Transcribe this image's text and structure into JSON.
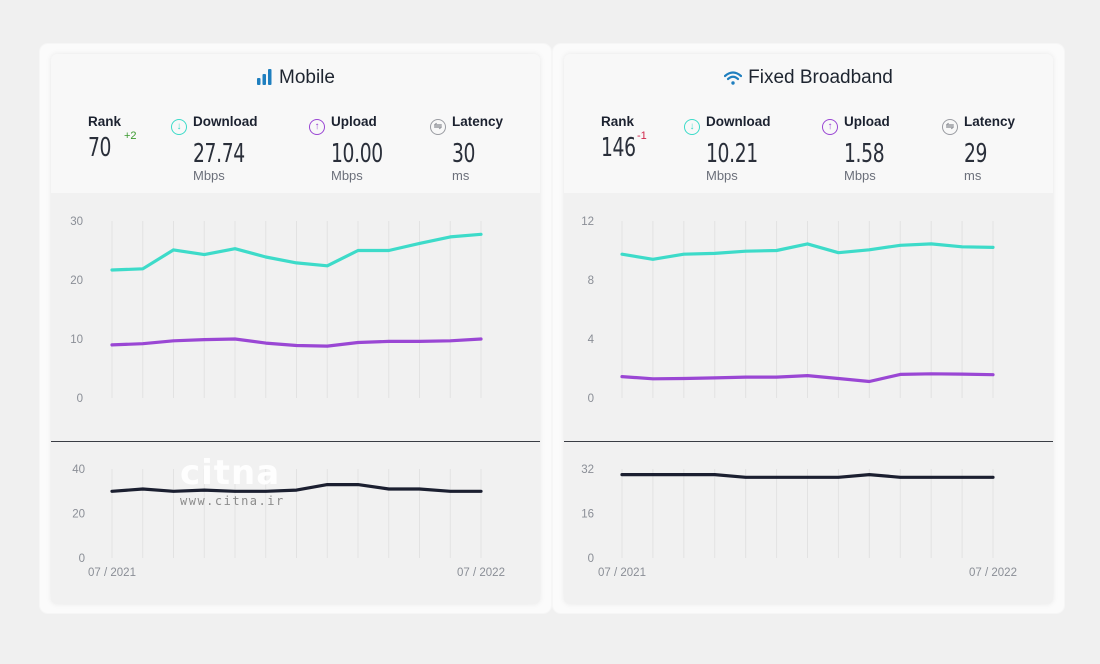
{
  "panels": [
    {
      "id": "mobile",
      "title": "Mobile",
      "icon": "signal-bars-icon",
      "rank": {
        "label": "Rank",
        "value": "70",
        "change": "+2",
        "change_color": "#3a9a2e"
      },
      "download": {
        "label": "Download",
        "value": "27.74",
        "unit": "Mbps"
      },
      "upload": {
        "label": "Upload",
        "value": "10.00",
        "unit": "Mbps"
      },
      "latency": {
        "label": "Latency",
        "value": "30",
        "unit": "ms"
      }
    },
    {
      "id": "fixed",
      "title": "Fixed Broadband",
      "icon": "wifi-icon",
      "rank": {
        "label": "Rank",
        "value": "146",
        "change": "-1",
        "change_color": "#d0264a"
      },
      "download": {
        "label": "Download",
        "value": "10.21",
        "unit": "Mbps"
      },
      "upload": {
        "label": "Upload",
        "value": "1.58",
        "unit": "Mbps"
      },
      "latency": {
        "label": "Latency",
        "value": "29",
        "unit": "ms"
      }
    }
  ],
  "colors": {
    "download": "#3ddbc9",
    "upload": "#9a47d4",
    "latency": "#1b1f30",
    "icon_blue": "#1f7fbf",
    "latency_icon": "#9a9ca2"
  },
  "watermark": {
    "logo": "citna",
    "url": "www.citna.ir"
  },
  "chart_data": [
    {
      "type": "line",
      "title": "Mobile speeds",
      "x_start_label": "07 / 2021",
      "x_end_label": "07 / 2022",
      "yticks": [
        "0",
        "10",
        "20",
        "30"
      ],
      "ylim": [
        0,
        30
      ],
      "grid": "vertical",
      "series": [
        {
          "name": "Download",
          "values": [
            21.7,
            21.9,
            25.1,
            24.3,
            25.3,
            23.9,
            22.9,
            22.4,
            25.0,
            25.0,
            26.2,
            27.3,
            27.74
          ]
        },
        {
          "name": "Upload",
          "values": [
            9.0,
            9.2,
            9.7,
            9.9,
            10.0,
            9.3,
            8.9,
            8.8,
            9.4,
            9.6,
            9.6,
            9.7,
            10.0
          ]
        }
      ]
    },
    {
      "type": "line",
      "title": "Mobile latency",
      "x_start_label": "07 / 2021",
      "x_end_label": "07 / 2022",
      "yticks": [
        "0",
        "20",
        "40"
      ],
      "ylim": [
        0,
        40
      ],
      "grid": "vertical",
      "series": [
        {
          "name": "Latency",
          "values": [
            30,
            31,
            30,
            30.5,
            30,
            30,
            30.5,
            33,
            33,
            31,
            31,
            30,
            30
          ]
        }
      ]
    },
    {
      "type": "line",
      "title": "Fixed Broadband speeds",
      "x_start_label": "07 / 2021",
      "x_end_label": "07 / 2022",
      "yticks": [
        "0",
        "4",
        "8",
        "12"
      ],
      "ylim": [
        0,
        12
      ],
      "grid": "vertical",
      "series": [
        {
          "name": "Download",
          "values": [
            9.75,
            9.4,
            9.75,
            9.8,
            9.95,
            10.0,
            10.45,
            9.85,
            10.05,
            10.35,
            10.45,
            10.25,
            10.21
          ]
        },
        {
          "name": "Upload",
          "values": [
            1.45,
            1.3,
            1.32,
            1.36,
            1.42,
            1.42,
            1.52,
            1.32,
            1.12,
            1.6,
            1.64,
            1.62,
            1.58
          ]
        }
      ]
    },
    {
      "type": "line",
      "title": "Fixed Broadband latency",
      "x_start_label": "07 / 2021",
      "x_end_label": "07 / 2022",
      "yticks": [
        "0",
        "16",
        "32"
      ],
      "ylim": [
        0,
        32
      ],
      "grid": "vertical",
      "series": [
        {
          "name": "Latency",
          "values": [
            30,
            30,
            30,
            30,
            29,
            29,
            29,
            29,
            30,
            29,
            29,
            29,
            29
          ]
        }
      ]
    }
  ]
}
